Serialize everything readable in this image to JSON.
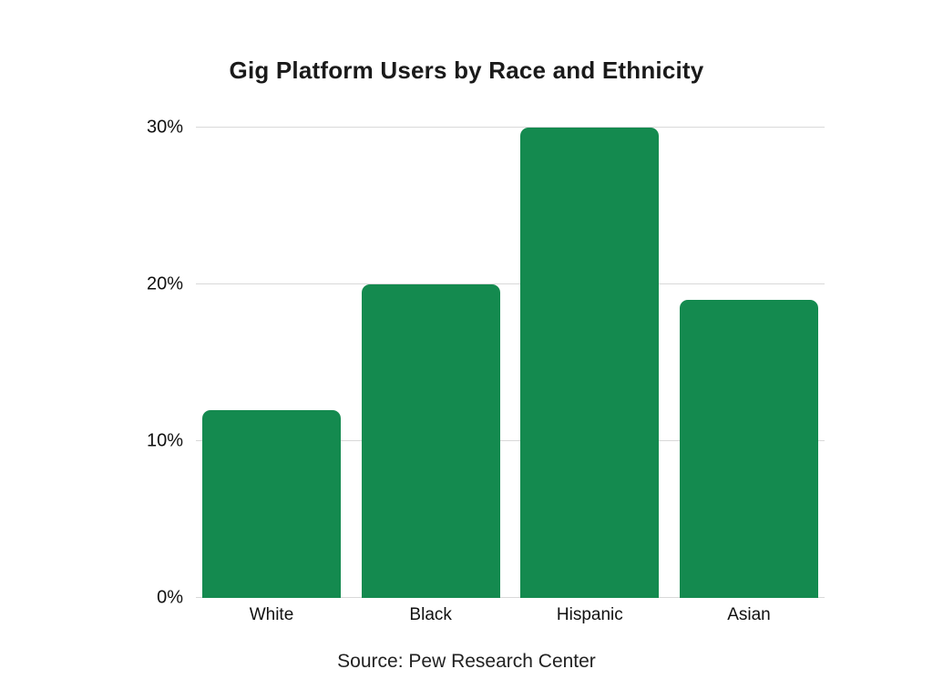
{
  "title": "Gig Platform Users by Race and Ethnicity",
  "source": "Source: Pew Research Center",
  "colors": {
    "bar": "#148a4f",
    "gridline": "#d9d9d9",
    "text": "#111111",
    "background": "#ffffff"
  },
  "chart_data": {
    "type": "bar",
    "categories": [
      "White",
      "Black",
      "Hispanic",
      "Asian"
    ],
    "values": [
      12,
      20,
      30,
      19
    ],
    "title": "Gig Platform Users by Race and Ethnicity",
    "xlabel": "",
    "ylabel": "",
    "ylim": [
      0,
      30
    ],
    "yticks": [
      0,
      10,
      20,
      30
    ],
    "ytick_labels": [
      "0%",
      "10%",
      "20%",
      "30%"
    ],
    "grid": true,
    "legend": false,
    "bar_color": "#148a4f",
    "source": "Source: Pew Research Center"
  }
}
